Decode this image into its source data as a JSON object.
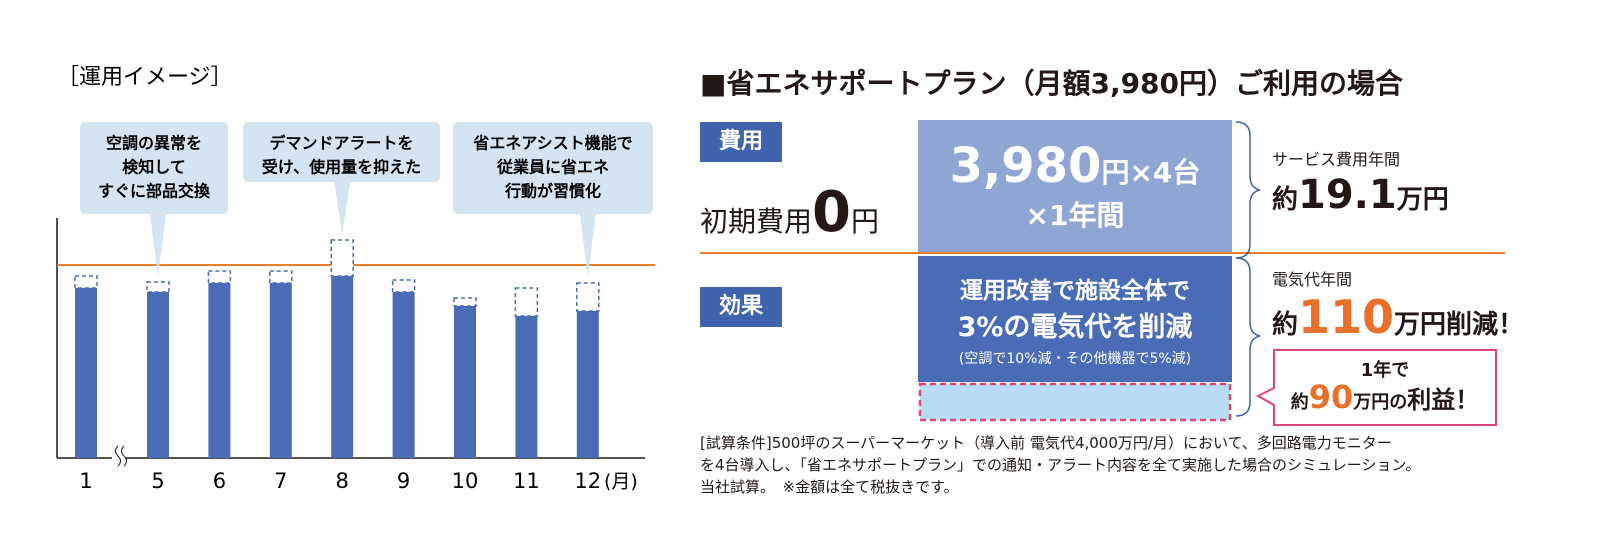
{
  "chart_data": {
    "type": "bar",
    "title": "［運用イメージ］",
    "categories": [
      "1",
      "5",
      "6",
      "7",
      "8",
      "9",
      "10",
      "11",
      "12"
    ],
    "x_unit": "(月)",
    "series": [
      {
        "color": "#4a6bb5",
        "style": "solid",
        "values": [
          170,
          166,
          175,
          175,
          182,
          166,
          152,
          142,
          147
        ]
      },
      {
        "color": "#4a6bb5",
        "style": "dashed",
        "values": [
          12,
          10,
          12,
          12,
          36,
          12,
          8,
          28,
          28
        ]
      }
    ],
    "threshold": 193,
    "threshold_color": "#e87d2a",
    "ylim": [
      0,
      240
    ],
    "annotations": [
      {
        "category": "5",
        "lines": [
          "空調の異常を",
          "検知して",
          "すぐに部品交換"
        ]
      },
      {
        "category": "8",
        "lines": [
          "デマンドアラートを",
          "受け、使用量を抑えた"
        ]
      },
      {
        "category": "12",
        "lines": [
          "省エネアシスト機能で",
          "従業員に省エネ",
          "行動が習慣化"
        ]
      }
    ]
  },
  "plan": {
    "title": "■省エネサポートプラン（月額3,980円）ご利用の場合",
    "cost": {
      "label": "費用",
      "initial": [
        "初期費用",
        "0",
        "円"
      ],
      "center": [
        "3,980",
        "円×4台",
        "×1年間"
      ],
      "annual_label": "サービス費用年間",
      "annual": [
        "約",
        "19.1",
        "万円"
      ]
    },
    "effect": {
      "label": "効果",
      "center": [
        "運用改善で施設全体で",
        "3%の電気代を削減",
        "(空調で10%減・その他機器で5%減)"
      ],
      "annual_label": "電気代年間",
      "annual": [
        "約",
        "110",
        "万円削減！"
      ],
      "profit": [
        "1年で",
        "約",
        "90",
        "万円の",
        "利益！"
      ]
    },
    "footnote": [
      "[試算条件]500坪のスーパーマーケット（導入前 電気代4,000万円/月）において、多回路電力モニター",
      "を4台導入し、「省エネサポートプラン」での通知・アラート内容を全て実施した場合のシミュレーション。",
      "当社試算。　※金額は全て税抜きです。"
    ]
  }
}
